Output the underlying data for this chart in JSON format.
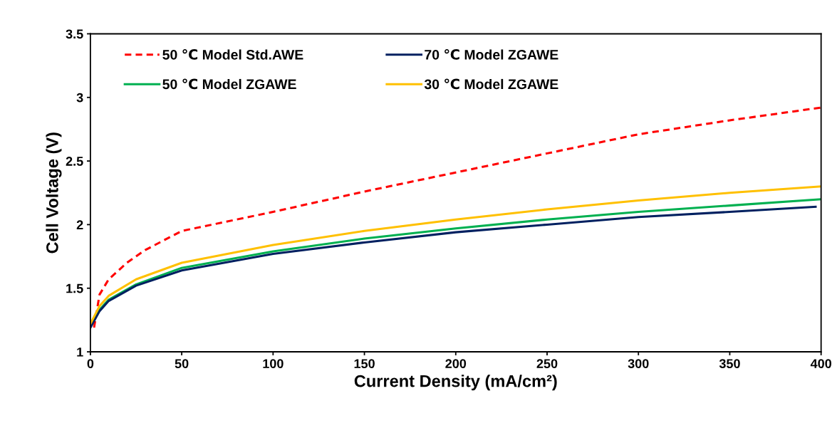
{
  "chart_data": {
    "type": "line",
    "xlabel": "Current Density (mA/cm²)",
    "ylabel": "Cell Voltage (V)",
    "xlim": [
      0,
      400
    ],
    "xticks": [
      0,
      50,
      100,
      150,
      200,
      250,
      300,
      350,
      400
    ],
    "ylim": [
      1,
      3.5
    ],
    "yticks": [
      1,
      1.5,
      2,
      2.5,
      3,
      3.5
    ],
    "grid": false,
    "legend": "top left",
    "marker": "none",
    "series": [
      {
        "name": "50 ℃ Model Std.AWE",
        "color": "#ff0000",
        "line_style": "dashed",
        "x": [
          2,
          5,
          10,
          20,
          30,
          50,
          100,
          150,
          200,
          250,
          300,
          350,
          400
        ],
        "values": [
          1.19,
          1.45,
          1.57,
          1.7,
          1.8,
          1.95,
          2.1,
          2.26,
          2.41,
          2.56,
          2.71,
          2.82,
          2.92
        ]
      },
      {
        "name": "50 ℃ Model ZGAWE",
        "color": "#00b050",
        "line_style": "solid",
        "x": [
          0,
          5,
          10,
          25,
          50,
          100,
          150,
          200,
          250,
          300,
          350,
          400
        ],
        "values": [
          1.2,
          1.33,
          1.41,
          1.53,
          1.66,
          1.79,
          1.89,
          1.97,
          2.04,
          2.1,
          2.15,
          2.2
        ]
      },
      {
        "name": "70 ℃ Model ZGAWE",
        "color": "#002060",
        "line_style": "solid",
        "x": [
          0,
          5,
          10,
          25,
          50,
          100,
          150,
          200,
          250,
          300,
          350,
          397
        ],
        "values": [
          1.19,
          1.32,
          1.4,
          1.52,
          1.64,
          1.77,
          1.86,
          1.94,
          2.0,
          2.06,
          2.1,
          2.14
        ]
      },
      {
        "name": "30 ℃ Model ZGAWE",
        "color": "#ffc000",
        "line_style": "solid",
        "x": [
          0,
          5,
          10,
          25,
          50,
          100,
          150,
          200,
          250,
          300,
          350,
          400
        ],
        "values": [
          1.22,
          1.36,
          1.44,
          1.57,
          1.7,
          1.84,
          1.95,
          2.04,
          2.12,
          2.19,
          2.25,
          2.3
        ]
      }
    ]
  }
}
